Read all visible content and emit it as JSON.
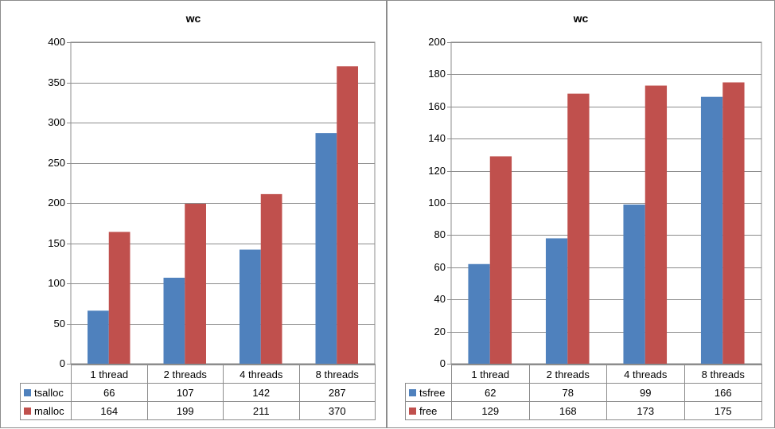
{
  "chart_data": [
    {
      "type": "bar",
      "title": "wc",
      "categories": [
        "1 thread",
        "2 threads",
        "4 threads",
        "8 threads"
      ],
      "series": [
        {
          "name": "tsalloc",
          "color": "#4f81bd",
          "values": [
            66,
            107,
            142,
            287
          ]
        },
        {
          "name": "malloc",
          "color": "#c0504d",
          "values": [
            164,
            199,
            211,
            370
          ]
        }
      ],
      "ylim": [
        0,
        400
      ],
      "yticks": [
        0,
        50,
        100,
        150,
        200,
        250,
        300,
        350,
        400
      ],
      "grid": true,
      "legend": "data table"
    },
    {
      "type": "bar",
      "title": "wc",
      "categories": [
        "1 thread",
        "2 threads",
        "4 threads",
        "8 threads"
      ],
      "series": [
        {
          "name": "tsfree",
          "color": "#4f81bd",
          "values": [
            62,
            78,
            99,
            166
          ]
        },
        {
          "name": "free",
          "color": "#c0504d",
          "values": [
            129,
            168,
            173,
            175
          ]
        }
      ],
      "ylim": [
        0,
        200
      ],
      "yticks": [
        0,
        20,
        40,
        60,
        80,
        100,
        120,
        140,
        160,
        180,
        200
      ],
      "grid": true,
      "legend": "data table"
    }
  ]
}
